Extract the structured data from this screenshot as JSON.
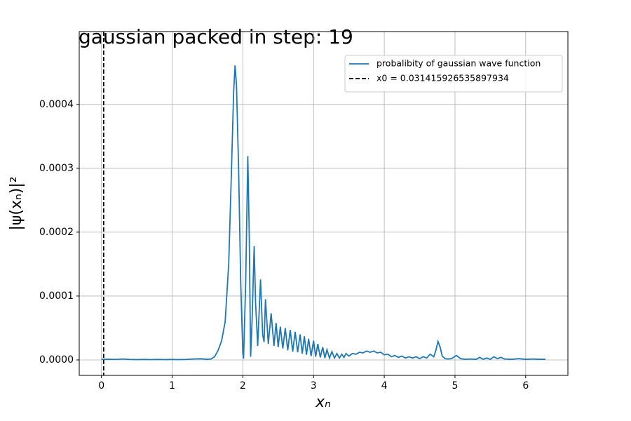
{
  "chart_data": {
    "type": "line",
    "title": "gaussian packed in step: 19",
    "xlabel": "xₙ",
    "ylabel": "|ψ(xₙ)|²",
    "x": [
      0,
      0.1,
      0.2,
      0.3,
      0.4,
      0.5,
      0.6,
      0.7,
      0.8,
      0.9,
      1.0,
      1.1,
      1.2,
      1.3,
      1.4,
      1.5,
      1.55,
      1.6,
      1.65,
      1.7,
      1.75,
      1.8,
      1.84,
      1.87,
      1.89,
      1.91,
      1.94,
      1.97,
      2.0,
      2.01,
      2.04,
      2.07,
      2.09,
      2.11,
      2.13,
      2.16,
      2.18,
      2.21,
      2.25,
      2.28,
      2.3,
      2.32,
      2.36,
      2.4,
      2.44,
      2.47,
      2.5,
      2.53,
      2.565,
      2.6,
      2.635,
      2.67,
      2.705,
      2.74,
      2.775,
      2.81,
      2.84,
      2.87,
      2.9,
      2.93,
      2.965,
      3.0,
      3.03,
      3.06,
      3.095,
      3.13,
      3.16,
      3.19,
      3.225,
      3.26,
      3.295,
      3.33,
      3.365,
      3.4,
      3.43,
      3.46,
      3.5,
      3.55,
      3.6,
      3.65,
      3.7,
      3.75,
      3.8,
      3.85,
      3.9,
      3.95,
      4.0,
      4.05,
      4.1,
      4.15,
      4.2,
      4.25,
      4.3,
      4.35,
      4.4,
      4.45,
      4.5,
      4.55,
      4.6,
      4.65,
      4.7,
      4.73,
      4.76,
      4.79,
      4.82,
      4.86,
      4.9,
      4.95,
      5.02,
      5.08,
      5.15,
      5.2,
      5.3,
      5.35,
      5.4,
      5.45,
      5.5,
      5.55,
      5.6,
      5.65,
      5.7,
      5.8,
      5.9,
      6.0,
      6.1,
      6.2,
      6.28
    ],
    "series": [
      {
        "name": "probalibity of gaussian wave function",
        "color": "#1f77b4",
        "values": [
          1e-06,
          1e-06,
          8e-07,
          1.5e-06,
          8e-07,
          5e-07,
          8e-07,
          5e-07,
          8e-07,
          5e-07,
          8e-07,
          5e-07,
          8e-07,
          1.5e-06,
          1.8e-06,
          1e-06,
          1.5e-06,
          5e-06,
          1.5e-05,
          3e-05,
          6e-05,
          0.00015,
          0.0003,
          0.00042,
          0.000461,
          0.00043,
          0.0003,
          0.00012,
          1e-05,
          2e-06,
          0.00012,
          0.000319,
          0.0002,
          5e-06,
          6e-05,
          0.000178,
          9e-05,
          2.2e-05,
          0.000126,
          4e-05,
          2.8e-05,
          9.5e-05,
          2.5e-05,
          7.3e-05,
          2.2e-05,
          5.8e-05,
          2e-05,
          5.2e-05,
          1.8e-05,
          5e-05,
          1.5e-05,
          4.7e-05,
          1.3e-05,
          4.4e-05,
          1.2e-05,
          4e-05,
          1e-05,
          3.7e-05,
          8e-06,
          3.3e-05,
          6e-06,
          3e-05,
          5e-06,
          2.5e-05,
          4e-06,
          2e-05,
          3e-06,
          1.6e-05,
          3e-06,
          1.3e-05,
          3e-06,
          1e-05,
          3e-06,
          9e-06,
          4e-06,
          1e-05,
          6e-06,
          1e-05,
          9e-06,
          1.2e-05,
          1.1e-05,
          1.4e-05,
          1.2e-05,
          1.4e-05,
          1.1e-05,
          1.2e-05,
          8e-06,
          9e-06,
          5e-06,
          7e-06,
          4e-06,
          6e-06,
          3e-06,
          5e-06,
          3e-06,
          5e-06,
          2e-06,
          5e-06,
          3e-06,
          9e-06,
          5e-06,
          1.5e-05,
          2.9e-05,
          2e-05,
          6e-06,
          2e-06,
          1.5e-06,
          2e-06,
          7e-06,
          2e-06,
          1e-06,
          1.5e-06,
          1e-06,
          4e-06,
          1e-06,
          3e-06,
          1e-06,
          5e-06,
          2e-06,
          4e-06,
          1.5e-06,
          1e-06,
          2e-06,
          1e-06,
          1.5e-06,
          1e-06,
          1e-06
        ]
      }
    ],
    "vlines": [
      {
        "name": "x0 = 0.031415926535897934",
        "x": 0.031415926535897934,
        "color": "#000000",
        "linestyle": "dashed"
      }
    ],
    "xlim": [
      -0.314,
      6.597
    ],
    "ylim": [
      -2.42e-05,
      0.000514
    ],
    "xticks": [
      0,
      1,
      2,
      3,
      4,
      5,
      6
    ],
    "yticks": [
      {
        "value": 0,
        "label": "0.0000"
      },
      {
        "value": 0.0001,
        "label": "0.0001"
      },
      {
        "value": 0.0002,
        "label": "0.0002"
      },
      {
        "value": 0.0003,
        "label": "0.0003"
      },
      {
        "value": 0.0004,
        "label": "0.0004"
      }
    ],
    "grid": true,
    "legend": "upper right"
  }
}
